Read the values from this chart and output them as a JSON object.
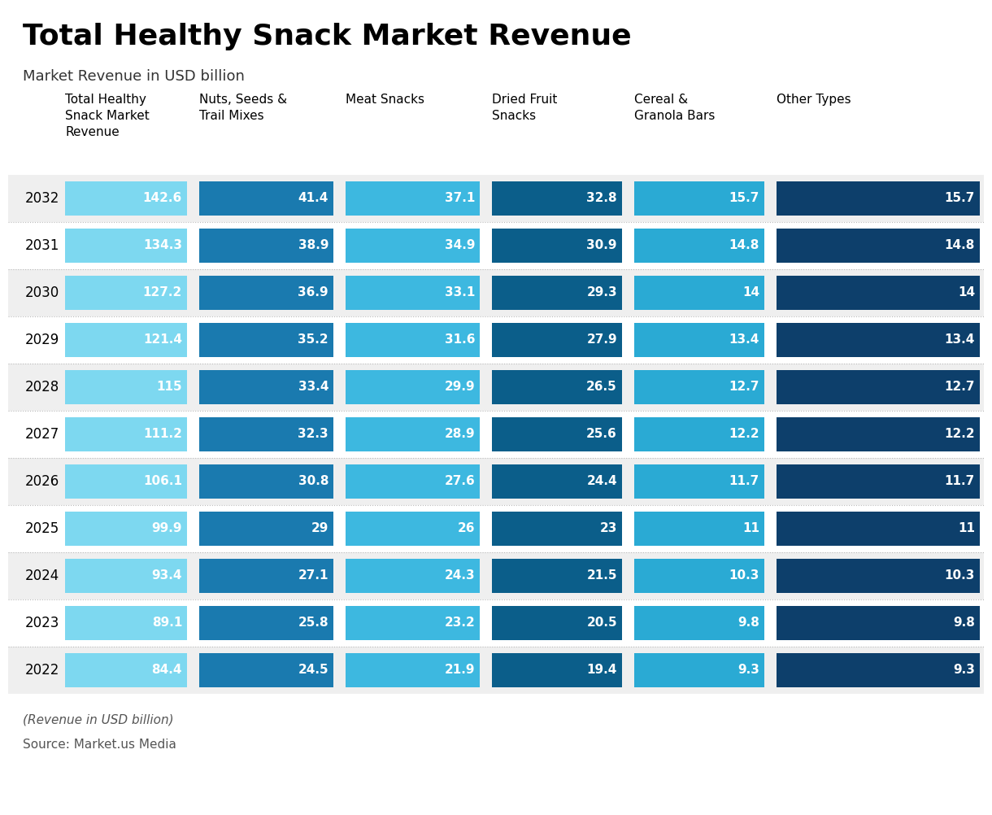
{
  "title": "Total Healthy Snack Market Revenue",
  "subtitle": "Market Revenue in USD billion",
  "footnote": "(Revenue in USD billion)",
  "source": "Source: Market.us Media",
  "years": [
    2032,
    2031,
    2030,
    2029,
    2028,
    2027,
    2026,
    2025,
    2024,
    2023,
    2022
  ],
  "columns": [
    "Total Healthy\nSnack Market\nRevenue",
    "Nuts, Seeds &\nTrail Mixes",
    "Meat Snacks",
    "Dried Fruit\nSnacks",
    "Cereal &\nGranola Bars",
    "Other Types"
  ],
  "colors": [
    "#7DD8F0",
    "#1A7AAF",
    "#3DB8E0",
    "#0B5E8A",
    "#2AAAD4",
    "#0D3F6B"
  ],
  "data": [
    [
      142.6,
      41.4,
      37.1,
      32.8,
      15.7,
      15.7
    ],
    [
      134.3,
      38.9,
      34.9,
      30.9,
      14.8,
      14.8
    ],
    [
      127.2,
      36.9,
      33.1,
      29.3,
      14.0,
      14.0
    ],
    [
      121.4,
      35.2,
      31.6,
      27.9,
      13.4,
      13.4
    ],
    [
      115.0,
      33.4,
      29.9,
      26.5,
      12.7,
      12.7
    ],
    [
      111.2,
      32.3,
      28.9,
      25.6,
      12.2,
      12.2
    ],
    [
      106.1,
      30.8,
      27.6,
      24.4,
      11.7,
      11.7
    ],
    [
      99.9,
      29.0,
      26.0,
      23.0,
      11.0,
      11.0
    ],
    [
      93.4,
      27.1,
      24.3,
      21.5,
      10.3,
      10.3
    ],
    [
      89.1,
      25.8,
      23.2,
      20.5,
      9.8,
      9.8
    ],
    [
      84.4,
      24.5,
      21.9,
      19.4,
      9.3,
      9.3
    ]
  ],
  "bg_color": "#FFFFFF",
  "row_alt_color": "#EFEFEF",
  "bar_text_color": "#FFFFFF",
  "year_text_color": "#000000",
  "header_text_color": "#000000",
  "title_fontsize": 26,
  "subtitle_fontsize": 13,
  "header_fontsize": 11,
  "value_fontsize": 11,
  "year_fontsize": 12,
  "footnote_fontsize": 11,
  "fig_width": 12.2,
  "fig_height": 10.02,
  "dpi": 100
}
